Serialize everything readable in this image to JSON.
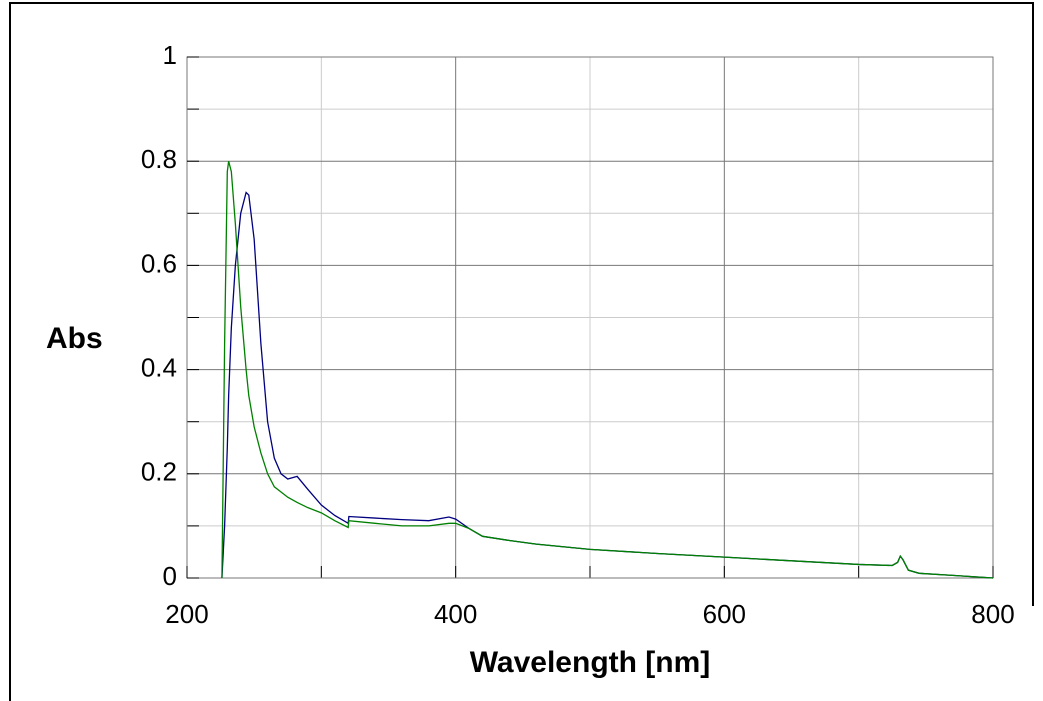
{
  "chart_data": {
    "type": "line",
    "xlabel": "Wavelength [nm]",
    "ylabel": "Abs",
    "x": [
      226,
      228,
      230,
      231,
      233,
      236,
      240,
      244,
      246,
      250,
      255,
      260,
      265,
      270,
      275,
      282,
      290,
      300,
      310,
      320,
      320.5,
      340,
      360,
      380,
      395,
      400,
      410,
      420,
      440,
      460,
      500,
      550,
      600,
      650,
      700,
      725,
      729,
      731,
      733,
      737,
      745,
      770,
      800
    ],
    "series": [
      {
        "color": "#000080",
        "values": [
          0,
          0.1,
          0.25,
          0.35,
          0.48,
          0.6,
          0.7,
          0.74,
          0.735,
          0.65,
          0.45,
          0.3,
          0.23,
          0.2,
          0.19,
          0.195,
          0.17,
          0.14,
          0.12,
          0.105,
          0.118,
          0.115,
          0.112,
          0.11,
          0.117,
          0.113,
          0.095,
          0.08,
          0.072,
          0.065,
          0.055,
          0.047,
          0.04,
          0.033,
          0.026,
          0.024,
          0.03,
          0.042,
          0.035,
          0.015,
          0.009,
          0.005,
          0
        ]
      },
      {
        "color": "#008000",
        "values": [
          0,
          0.45,
          0.78,
          0.8,
          0.78,
          0.68,
          0.52,
          0.4,
          0.35,
          0.29,
          0.24,
          0.2,
          0.175,
          0.165,
          0.155,
          0.145,
          0.135,
          0.125,
          0.11,
          0.097,
          0.11,
          0.105,
          0.1,
          0.1,
          0.105,
          0.105,
          0.095,
          0.08,
          0.072,
          0.065,
          0.055,
          0.047,
          0.04,
          0.033,
          0.026,
          0.024,
          0.03,
          0.042,
          0.035,
          0.015,
          0.009,
          0.005,
          0
        ]
      }
    ],
    "xlim": [
      200,
      800
    ],
    "ylim": [
      0,
      1
    ],
    "xticks": [
      200,
      400,
      600,
      800
    ],
    "yticks": [
      0,
      0.2,
      0.4,
      0.6,
      0.8,
      1
    ],
    "xminorticks": [
      300,
      500,
      700
    ],
    "yminorticks": [
      0.1,
      0.3,
      0.5,
      0.7,
      0.9
    ],
    "grid": true
  }
}
